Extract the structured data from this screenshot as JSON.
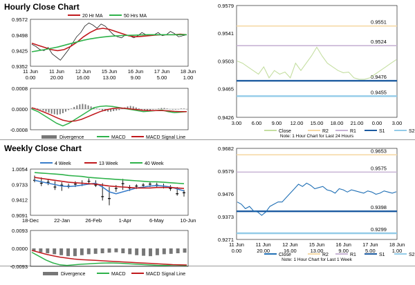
{
  "sections": {
    "hourly_title": "Hourly Close Chart",
    "weekly_title": "Weekly Close Chart"
  },
  "colors": {
    "close_blue": "#1f6fb5",
    "ma_red": "#c0181c",
    "ma_green": "#2db24a",
    "ma_blue": "#3a7ecb",
    "r2": "#f6d9a5",
    "r1": "#c7b3d4",
    "s1": "#1b5aa0",
    "s2": "#93cbe8",
    "hourly_close": "#c4dea0",
    "divergence": "#777777"
  },
  "chart_data": [
    {
      "id": "hourly_price",
      "type": "line",
      "legend": [
        "20 Hr MA",
        "50 Hrs MA"
      ],
      "x_ticks": [
        "11 Jun\n0.00",
        "11 Jun\n20.00",
        "12 Jun\n16.00",
        "15 Jun\n13.00",
        "16 Jun\n9.00",
        "17 Jun\n5.00",
        "18 Jun\n1.00"
      ],
      "y_ticks": [
        0.9572,
        0.9498,
        0.9425,
        0.9352
      ],
      "ylim": [
        0.9352,
        0.9572
      ],
      "price_path": [
        0.9455,
        0.9445,
        0.943,
        0.9425,
        0.944,
        0.941,
        0.9395,
        0.938,
        0.9405,
        0.943,
        0.946,
        0.949,
        0.951,
        0.954,
        0.9555,
        0.9545,
        0.953,
        0.955,
        0.954,
        0.952,
        0.95,
        0.949,
        0.9485,
        0.95,
        0.9495,
        0.9485,
        0.9495,
        0.951,
        0.95,
        0.9495,
        0.95,
        0.951,
        0.9495,
        0.95,
        0.9515,
        0.9505,
        0.949,
        0.9495,
        0.95
      ],
      "series": [
        {
          "name": "20 Hr MA",
          "values": [
            0.946,
            0.945,
            0.944,
            0.943,
            0.9425,
            0.943,
            0.9445,
            0.9465,
            0.949,
            0.951,
            0.9525,
            0.953,
            0.9525,
            0.9515,
            0.9505,
            0.9495,
            0.949,
            0.9492,
            0.9495,
            0.9498,
            0.95,
            0.95,
            0.95,
            0.9502,
            0.95
          ]
        },
        {
          "name": "50 Hrs MA",
          "values": [
            0.942,
            0.9425,
            0.943,
            0.9436,
            0.9442,
            0.945,
            0.9458,
            0.9466,
            0.9474,
            0.948,
            0.9485,
            0.9489,
            0.9492,
            0.9494,
            0.9496,
            0.9497,
            0.9498,
            0.9499,
            0.95,
            0.95,
            0.95,
            0.95,
            0.95,
            0.95,
            0.95
          ]
        }
      ]
    },
    {
      "id": "hourly_macd",
      "type": "line",
      "legend": [
        "Divergence",
        "MACD",
        "MACD Signal Line"
      ],
      "y_ticks": [
        0.0008,
        0.0,
        -0.0008
      ],
      "ylim": [
        -0.0008,
        0.0008
      ],
      "divergence": [
        5e-05,
        4e-05,
        2e-05,
        -2e-05,
        -6e-05,
        -0.0001,
        -0.00014,
        -0.00018,
        -0.0002,
        -0.00022,
        -0.0002,
        -0.00016,
        -0.0001,
        -4e-05,
        2e-05,
        8e-05,
        0.00014,
        0.00018,
        0.0002,
        0.00018,
        0.00014,
        0.0001,
        6e-05,
        2e-05,
        -2e-05,
        -5e-05,
        -8e-05,
        -0.0001,
        -0.0001,
        -8e-05,
        -6e-05,
        -4e-05,
        2e-05,
        6e-05,
        0.0001,
        0.00012,
        0.0001,
        6e-05,
        2e-05,
        -2e-05,
        -4e-05,
        -6e-05,
        -4e-05,
        -2e-05,
        0.0,
        2e-05,
        4e-05,
        4e-05,
        2e-05,
        0.0,
        -2e-05,
        -2e-05,
        0.0,
        2e-05,
        2e-05,
        0.0
      ],
      "series": [
        {
          "name": "MACD",
          "values": [
            0.0,
            -0.0001,
            -0.00025,
            -0.0004,
            -0.00055,
            -0.00065,
            -0.00055,
            -0.0004,
            -0.00025,
            -0.0001,
            5e-05,
            0.0001,
            0.00012,
            0.0001,
            6e-05,
            2e-05,
            -2e-05,
            -6e-05,
            -0.0001,
            -8e-05,
            -6e-05,
            -4e-05,
            -0.0001,
            -0.00014,
            -0.00012,
            -0.0001
          ]
        },
        {
          "name": "MACD Signal Line",
          "values": [
            5e-05,
            -3e-05,
            -0.00012,
            -0.00022,
            -0.00033,
            -0.00043,
            -0.00048,
            -0.00046,
            -0.0004,
            -0.0003,
            -0.0002,
            -0.0001,
            -3e-05,
            2e-05,
            4e-05,
            3e-05,
            0.0,
            -2e-05,
            -5e-05,
            -6e-05,
            -6e-05,
            -6e-05,
            -7e-05,
            -9e-05,
            -0.0001,
            -0.0001
          ]
        }
      ]
    },
    {
      "id": "hourly_levels",
      "type": "line",
      "legend": [
        "Close",
        "R2",
        "R1",
        "S1",
        "S2"
      ],
      "note": "Note: 1 Hour Chart for Last 24 Hours",
      "x_ticks": [
        "3.00",
        "6.00",
        "9.00",
        "12.00",
        "15.00",
        "18.00",
        "21.00",
        "0.00",
        "3.00"
      ],
      "y_ticks": [
        0.9579,
        0.9541,
        0.9503,
        0.9465,
        0.9426
      ],
      "ylim": [
        0.9426,
        0.9579
      ],
      "levels": [
        {
          "name": "R2",
          "value": 0.9551,
          "label": "0.9551"
        },
        {
          "name": "R1",
          "value": 0.9524,
          "label": "0.9524"
        },
        {
          "name": "S1",
          "value": 0.9476,
          "label": "0.9476"
        },
        {
          "name": "S2",
          "value": 0.9455,
          "label": "0.9455"
        }
      ],
      "close": [
        0.9503,
        0.95,
        0.9495,
        0.949,
        0.9485,
        0.9495,
        0.948,
        0.949,
        0.9485,
        0.9488,
        0.948,
        0.95,
        0.949,
        0.95,
        0.951,
        0.9522,
        0.951,
        0.95,
        0.9495,
        0.949,
        0.9487,
        0.9488,
        0.948,
        0.9478,
        0.9478,
        0.948,
        0.9485,
        0.949,
        0.9495,
        0.95,
        0.9505
      ]
    },
    {
      "id": "weekly_price",
      "type": "line",
      "legend": [
        "4 Week",
        "13 Week",
        "40 Week"
      ],
      "x_ticks": [
        "18-Dec",
        "22-Jan",
        "26-Feb",
        "1-Apr",
        "6-May",
        "10-Jun"
      ],
      "y_ticks": [
        1.0054,
        0.9733,
        0.9412,
        0.9091
      ],
      "ylim": [
        0.9091,
        1.0054
      ],
      "candles": [
        {
          "h": 0.992,
          "l": 0.978,
          "v": 0.982
        },
        {
          "h": 0.988,
          "l": 0.97,
          "v": 0.976
        },
        {
          "h": 0.985,
          "l": 0.972,
          "v": 0.978
        },
        {
          "h": 0.98,
          "l": 0.962,
          "v": 0.968
        },
        {
          "h": 0.978,
          "l": 0.96,
          "v": 0.972
        },
        {
          "h": 0.975,
          "l": 0.965,
          "v": 0.97
        },
        {
          "h": 0.98,
          "l": 0.968,
          "v": 0.974
        },
        {
          "h": 0.982,
          "l": 0.97,
          "v": 0.976
        },
        {
          "h": 0.986,
          "l": 0.976,
          "v": 0.98
        },
        {
          "h": 0.982,
          "l": 0.968,
          "v": 0.972
        },
        {
          "h": 0.976,
          "l": 0.94,
          "v": 0.948
        },
        {
          "h": 0.968,
          "l": 0.93,
          "v": 0.944
        },
        {
          "h": 0.972,
          "l": 0.958,
          "v": 0.965
        },
        {
          "h": 0.985,
          "l": 0.962,
          "v": 0.975
        },
        {
          "h": 0.972,
          "l": 0.96,
          "v": 0.966
        },
        {
          "h": 0.974,
          "l": 0.964,
          "v": 0.97
        },
        {
          "h": 0.976,
          "l": 0.966,
          "v": 0.972
        },
        {
          "h": 0.978,
          "l": 0.968,
          "v": 0.974
        },
        {
          "h": 0.977,
          "l": 0.967,
          "v": 0.972
        },
        {
          "h": 0.975,
          "l": 0.965,
          "v": 0.97
        },
        {
          "h": 0.972,
          "l": 0.96,
          "v": 0.965
        },
        {
          "h": 0.968,
          "l": 0.95,
          "v": 0.954
        },
        {
          "h": 0.962,
          "l": 0.948,
          "v": 0.956
        }
      ],
      "series": [
        {
          "name": "4 Week",
          "values": [
            0.982,
            0.979,
            0.976,
            0.973,
            0.97,
            0.969,
            0.97,
            0.972,
            0.974,
            0.976,
            0.968,
            0.958,
            0.954,
            0.958,
            0.962,
            0.966,
            0.968,
            0.97,
            0.971,
            0.97,
            0.968,
            0.964,
            0.96
          ]
        },
        {
          "name": "13 Week",
          "values": [
            0.988,
            0.986,
            0.984,
            0.982,
            0.98,
            0.978,
            0.977,
            0.976,
            0.975,
            0.974,
            0.972,
            0.97,
            0.969,
            0.968,
            0.967,
            0.966,
            0.966,
            0.966,
            0.967,
            0.967,
            0.967,
            0.966,
            0.965
          ]
        },
        {
          "name": "40 Week",
          "values": [
            0.998,
            0.997,
            0.996,
            0.995,
            0.994,
            0.992,
            0.991,
            0.99,
            0.988,
            0.987,
            0.986,
            0.985,
            0.984,
            0.983,
            0.982,
            0.981,
            0.98,
            0.979,
            0.979,
            0.978,
            0.977,
            0.976,
            0.975
          ]
        }
      ]
    },
    {
      "id": "weekly_macd",
      "type": "line",
      "legend": [
        "Divergence",
        "MACD",
        "MACD Signal Line"
      ],
      "y_ticks": [
        0.0093,
        0.0,
        -0.0093
      ],
      "ylim": [
        -0.0093,
        0.0093
      ],
      "divergence": [
        -0.0015,
        -0.002,
        -0.0025,
        -0.003,
        -0.0035,
        -0.004,
        -0.004,
        -0.0035,
        -0.003,
        -0.0028,
        -0.0025,
        -0.0022,
        -0.002,
        -0.0025,
        -0.003,
        -0.0035,
        -0.0038,
        -0.004,
        -0.0035,
        -0.003,
        -0.0028,
        -0.0025,
        -0.0022
      ],
      "series": [
        {
          "name": "MACD",
          "values": [
            -0.002,
            -0.004,
            -0.006,
            -0.0075,
            -0.0085,
            -0.0088,
            -0.0085,
            -0.0082,
            -0.008,
            -0.0078,
            -0.0076,
            -0.0075,
            -0.0076,
            -0.0078,
            -0.008,
            -0.0082,
            -0.0084,
            -0.0086,
            -0.0088,
            -0.0088,
            -0.0086,
            -0.0087,
            -0.0089
          ]
        },
        {
          "name": "MACD Signal Line",
          "values": [
            -0.001,
            -0.002,
            -0.003,
            -0.0038,
            -0.0045,
            -0.005,
            -0.0055,
            -0.0058,
            -0.006,
            -0.0062,
            -0.0064,
            -0.0066,
            -0.0068,
            -0.007,
            -0.0072,
            -0.0074,
            -0.0076,
            -0.0078,
            -0.008,
            -0.0082,
            -0.0084,
            -0.0085,
            -0.0086
          ]
        }
      ]
    },
    {
      "id": "weekly_levels",
      "type": "line",
      "legend": [
        "Close",
        "R2",
        "R1",
        "S1",
        "S2"
      ],
      "note": "Note: 1 Hour Chart for Last 1 Week",
      "x_ticks": [
        "11 Jun\n0.00",
        "11 Jun\n20.00",
        "12 Jun\n16.00",
        "15 Jun\n13.00",
        "16 Jun\n9.00",
        "17 Jun\n5.00",
        "18 Jun\n1.00"
      ],
      "y_ticks": [
        0.9682,
        0.9579,
        0.9476,
        0.9373,
        0.9271
      ],
      "ylim": [
        0.9271,
        0.9682
      ],
      "levels": [
        {
          "name": "R2",
          "value": 0.9653,
          "label": "0.9653"
        },
        {
          "name": "R1",
          "value": 0.9575,
          "label": "0.9575"
        },
        {
          "name": "S1",
          "value": 0.9398,
          "label": "0.9398"
        },
        {
          "name": "S2",
          "value": 0.9299,
          "label": "0.9299"
        }
      ],
      "close": [
        0.944,
        0.943,
        0.941,
        0.942,
        0.94,
        0.9395,
        0.938,
        0.9395,
        0.942,
        0.943,
        0.944,
        0.944,
        0.946,
        0.948,
        0.95,
        0.952,
        0.951,
        0.9525,
        0.9515,
        0.95,
        0.9505,
        0.951,
        0.9495,
        0.949,
        0.948,
        0.95,
        0.9495,
        0.9485,
        0.9495,
        0.949,
        0.9485,
        0.948,
        0.949,
        0.9485,
        0.9475,
        0.948,
        0.949,
        0.9485,
        0.948,
        0.9486
      ]
    }
  ]
}
